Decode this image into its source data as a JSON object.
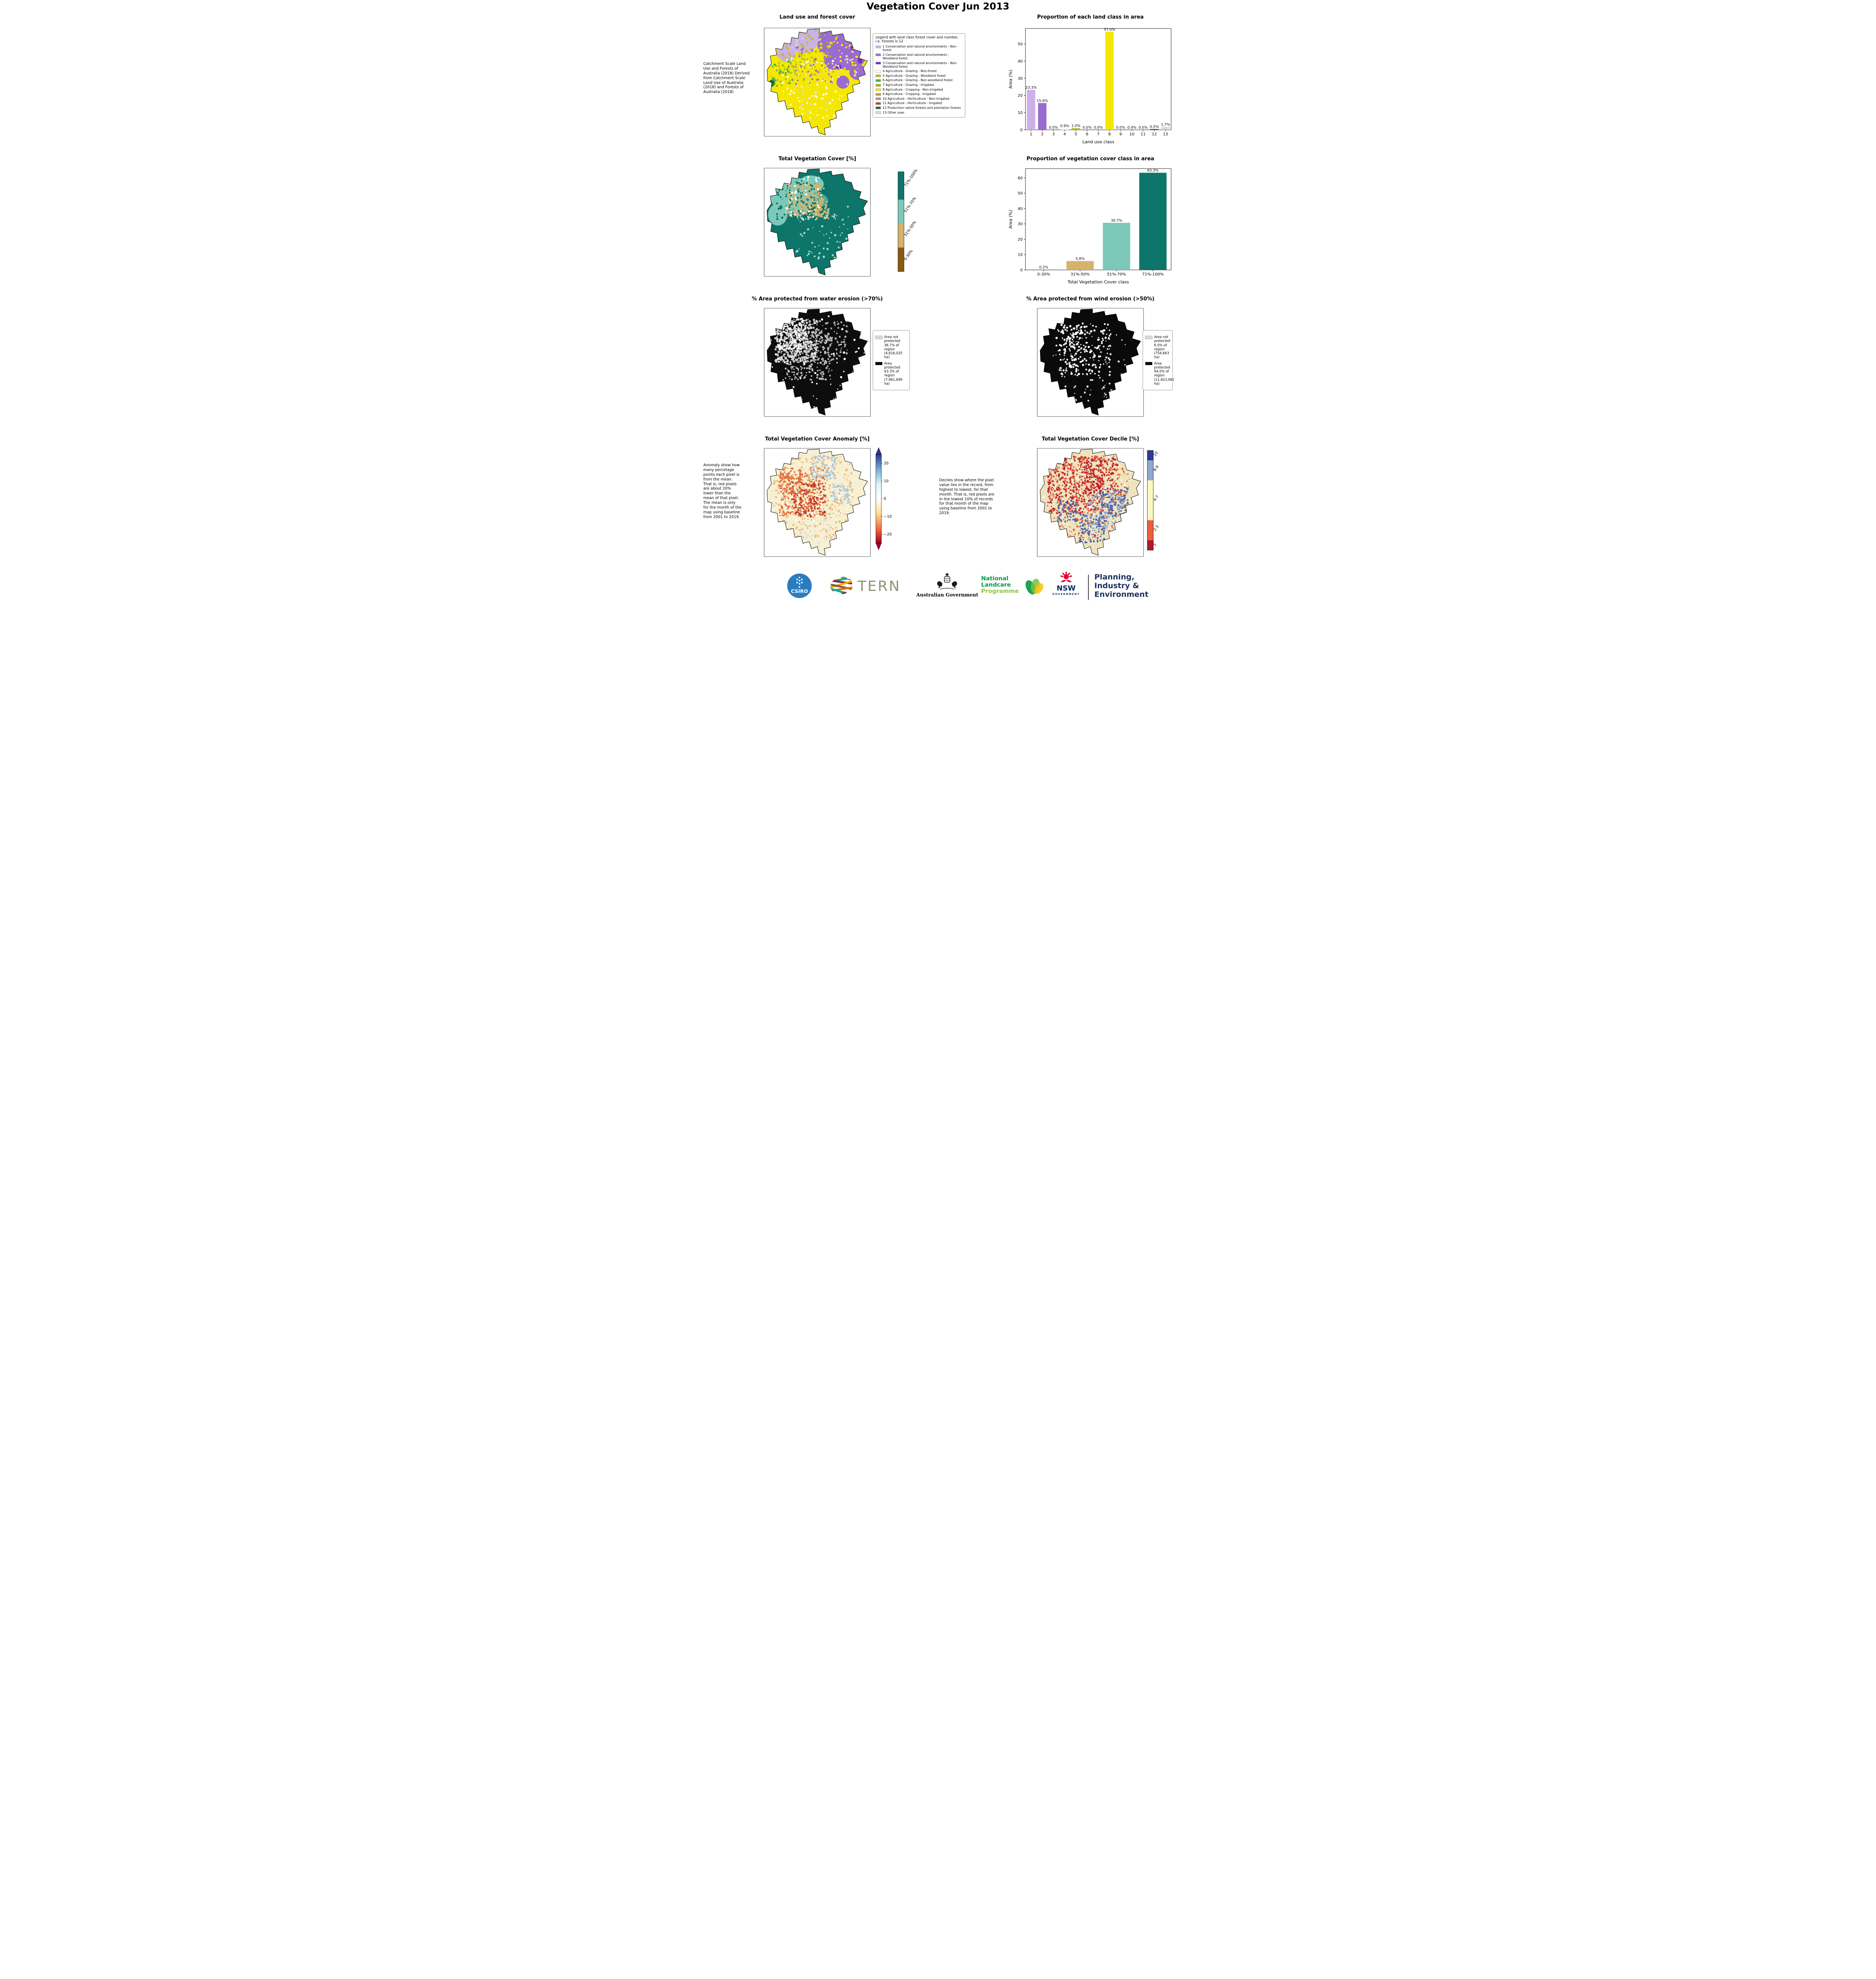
{
  "page": {
    "title": "Vegetation Cover Jun 2013"
  },
  "chart_data": [
    {
      "type": "bar",
      "title": "Proportion of each land class in area",
      "xlabel": "Land use class",
      "ylabel": "Area (%)",
      "categories": [
        "1",
        "2",
        "3",
        "4",
        "5",
        "6",
        "7",
        "8",
        "9",
        "10",
        "11",
        "12",
        "13"
      ],
      "values": [
        23.3,
        15.6,
        0.0,
        0.9,
        1.0,
        0.0,
        0.0,
        57.0,
        0.0,
        0.0,
        0.0,
        0.5,
        1.7
      ],
      "bar_labels": [
        "23.3%",
        "15.6%",
        "0.0%",
        "0.9%",
        "1.0%",
        "0.0%",
        "0.0%",
        "57.0%",
        "0.0%",
        "0.0%",
        "0.0%",
        "0.5%",
        "1.7%"
      ],
      "colors": [
        "#ccb1e6",
        "#9a6bd0",
        "#7b2fbe",
        "#fffff0",
        "#bcbd22",
        "#4caf50",
        "#c0a020",
        "#f5e800",
        "#b5a05a",
        "#bc8f8f",
        "#a0522d",
        "#1a6b3c",
        "#d9d9d9"
      ],
      "ylim": [
        0,
        59
      ],
      "yticks": [
        0,
        10,
        20,
        30,
        40,
        50
      ],
      "grid": false,
      "legend": "none"
    },
    {
      "type": "bar",
      "title": "Proportion of vegetation cover class in area",
      "xlabel": "Total Vegetation Cover class",
      "ylabel": "Area (%)",
      "categories": [
        "0-30%",
        "31%-50%",
        "51%-70%",
        "71%-100%"
      ],
      "values": [
        0.2,
        5.8,
        30.7,
        63.3
      ],
      "bar_labels": [
        "0.2%",
        "5.8%",
        "30.7%",
        "63.3%"
      ],
      "colors": [
        "#8c5a0f",
        "#d7b26d",
        "#7cc9b9",
        "#0e756a"
      ],
      "ylim": [
        0,
        66
      ],
      "yticks": [
        0,
        10,
        20,
        30,
        40,
        50,
        60
      ],
      "grid": false,
      "legend": "none"
    }
  ],
  "panels": {
    "landuse": {
      "title": "Land use and forest cover",
      "side_note": "Catchment Scale Land Use and Forests of Australia (2018) Derived from Catchment Scale Land Use of Australia (2018) and Forests of Australia (2018)",
      "legend_title": "Legend with land class forest cover and number, i.e. Forests is 12",
      "legend_items": [
        {
          "label": "1 Conservation and natural environments - Non-forest",
          "color": "#ccb1e6"
        },
        {
          "label": "2 Conservation and natural environments - Woodland forest",
          "color": "#9a6bd0"
        },
        {
          "label": "3 Conservation and natural environments - Non-Woodland forest",
          "color": "#7b2fbe"
        },
        {
          "label": "4 Agriculture - Grazing - Non-forest",
          "color": "#fffff0"
        },
        {
          "label": "5 Agriculture - Grazing - Woodland forest",
          "color": "#bcbd22"
        },
        {
          "label": "6 Agriculture - Grazing - Non-woodland forest",
          "color": "#4caf50"
        },
        {
          "label": "7 Agriculture - Grazing - Irrigated",
          "color": "#c0a020"
        },
        {
          "label": "8 Agriculture - Cropping - Non-irrigated",
          "color": "#f5e800"
        },
        {
          "label": "9 Agriculture - Cropping - Irrigated",
          "color": "#b5a05a"
        },
        {
          "label": "10 Agriculture - Horticulture - Non-irrigated",
          "color": "#bc8f8f"
        },
        {
          "label": "11 Agriculture - Horticulture - Irrigated",
          "color": "#a0522d"
        },
        {
          "label": "12 Production native forests and plantation forests",
          "color": "#1a6b3c"
        },
        {
          "label": "13 Other uses",
          "color": "#d9d9d9"
        }
      ],
      "map_palette": {
        "base": "#f5e800"
      }
    },
    "vegcover": {
      "title": "Total Vegetation Cover [%]",
      "colorbar": {
        "segments_top_to_bottom": [
          {
            "label": "71%-100%",
            "color": "#0e756a",
            "frac": 0.28
          },
          {
            "label": "51%-70%",
            "color": "#7cc9b9",
            "frac": 0.24
          },
          {
            "label": "31%-50%",
            "color": "#d7b26d",
            "frac": 0.24
          },
          {
            "label": "0-30%",
            "color": "#8c5a0f",
            "frac": 0.24
          }
        ]
      }
    },
    "water": {
      "title": "% Area protected from water erosion (>70%)",
      "legend": [
        {
          "label": "Area not protected 36.7% of region (4,616,025 ha)",
          "color": "#d9d9d9"
        },
        {
          "label": "Area protected 63.3% of region (7,961,699 ha)",
          "color": "#000000"
        }
      ]
    },
    "wind": {
      "title": "% Area protected from wind erosion (>50%)",
      "legend": [
        {
          "label": "Area not protected 6.0% of region (754,663 ha)",
          "color": "#d9d9d9"
        },
        {
          "label": "Area protected 94.0% of region (11,823,061 ha)",
          "color": "#000000"
        }
      ]
    },
    "anomaly": {
      "title": "Total Vegetation Cover Anomaly [%]",
      "note": "Anomaly show how many percetage points each pixel is from the mean. That is, red pixels are about 20% lower than the mean of that pixel. The mean is only for the month of the map using baseline from 2001 to 2019.",
      "colorbar": {
        "ticks": [
          {
            "label": "20",
            "v": 20
          },
          {
            "label": "10",
            "v": 10
          },
          {
            "label": "0",
            "v": 0
          },
          {
            "label": "−10",
            "v": -10
          },
          {
            "label": "−20",
            "v": -20
          }
        ],
        "stops_top_to_bottom": [
          "#313695",
          "#74add1",
          "#e0f3f8",
          "#ffffff",
          "#fee090",
          "#f46d43",
          "#a50026"
        ]
      }
    },
    "decile": {
      "title": "Total Vegetation Cover Decile [%]",
      "note": "Deciles show where the pixel value lies in the record, from highest to lowest, for that month. That is, red pixels are in the lowest 10% of records for that month of the map using baseline from 2001 to 2019.",
      "colorbar": {
        "segments_top_to_bottom": [
          {
            "label": "10",
            "color": "#2d3a96",
            "frac": 0.1
          },
          {
            "label": "8-9",
            "color": "#8fa8d0",
            "frac": 0.2
          },
          {
            "label": "4-7",
            "color": "#fdf8c1",
            "frac": 0.4
          },
          {
            "label": "2-3",
            "color": "#e8613c",
            "frac": 0.2
          },
          {
            "label": "1",
            "color": "#b0182b",
            "frac": 0.1
          }
        ]
      }
    }
  },
  "footer": {
    "csiro": {
      "label": "CSIRO"
    },
    "tern": {
      "label": "TERN"
    },
    "aus_gov": {
      "label": "Australian Government"
    },
    "landcare": {
      "lines": [
        "National",
        "Landcare",
        "Programme"
      ]
    },
    "nsw": {
      "label": "NSW",
      "sub": "GOVERNMENT"
    },
    "planning": {
      "lines": [
        "Planning,",
        "Industry &",
        "Environment"
      ]
    }
  }
}
